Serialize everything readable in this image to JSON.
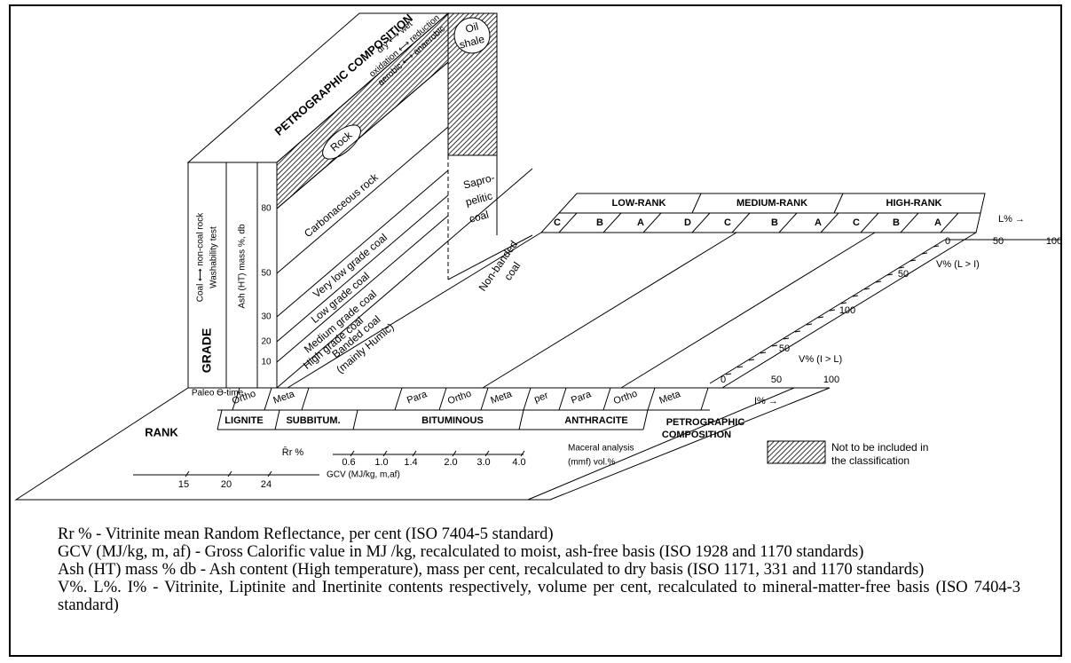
{
  "grade": {
    "title": "GRADE",
    "coal_label": "Coal ⟷ non-coal rock",
    "washability": "Washability test",
    "ash_label": "Ash (HT) mass %, db",
    "ticks": [
      "80",
      "50",
      "30",
      "20",
      "10"
    ]
  },
  "petrographic": {
    "title": "PETROGRAPHIC COMPOSITION",
    "conditions": [
      "dry ⟷ wet",
      "oxidation ⟷ reduction",
      "aerobic ⟷ anaerobic"
    ],
    "rock": "Rock",
    "oil_shale": [
      "Oil",
      "shale"
    ],
    "grades": [
      "Carbonaceous rock",
      "Very low grade coal",
      "Low grade coal",
      "Medium grade coal",
      "High grade coal"
    ],
    "banded": [
      "Banded coal",
      "(mainly Humic)"
    ],
    "sapropelitic": [
      "Sapro-",
      "pelitic",
      "coal"
    ],
    "non_banded": [
      "Non-banded",
      "coal"
    ]
  },
  "rank": {
    "title": "RANK",
    "paleo": "Paleo ϴ-time",
    "subranks": [
      "Ortho",
      "Meta",
      "Para",
      "Ortho",
      "Meta",
      "per",
      "Para",
      "Ortho",
      "Meta"
    ],
    "classes": [
      "LIGNITE",
      "SUBBITUM.",
      "BITUMINOUS",
      "ANTHRACITE"
    ],
    "petro": [
      "PETROGRAPHIC",
      "COMPOSITION"
    ]
  },
  "rr": {
    "label": "R̄r %",
    "ticks": [
      "0.6",
      "1.0",
      "1.4",
      "2.0",
      "3.0",
      "4.0"
    ]
  },
  "gcv": {
    "label": "GCV (MJ/kg, m,af)",
    "ticks": [
      "15",
      "20",
      "24"
    ]
  },
  "maceral": [
    "Maceral analysis",
    "(mmf) vol.%"
  ],
  "rank_table": {
    "groups": [
      "LOW-RANK",
      "MEDIUM-RANK",
      "HIGH-RANK"
    ],
    "letters": [
      "C",
      "B",
      "A",
      "D",
      "C",
      "B",
      "A",
      "C",
      "B",
      "A"
    ],
    "l_axis": "L% →",
    "l_ticks": [
      "0",
      "50",
      "100"
    ],
    "v_li": "V% (L > I)",
    "v_li_ticks": [
      "50",
      "100"
    ],
    "v_il": "V% (I > L)",
    "v_il_ticks": [
      "50"
    ],
    "i_axis": "I% →",
    "i_ticks": [
      "0",
      "50",
      "100"
    ]
  },
  "legend": [
    "Not to be included in",
    "the classification"
  ],
  "notes": [
    "Rr % - Vitrinite mean Random Reflectance, per cent (ISO 7404-5 standard)",
    "GCV (MJ/kg, m, af) - Gross Calorific value in MJ /kg, recalculated to moist, ash-free basis (ISO 1928 and 1170 standards)",
    "Ash (HT) mass % db - Ash content (High temperature), mass per cent, recalculated to dry basis (ISO 1171, 331 and 1170 standards)",
    "V%. L%. I% - Vitrinite, Liptinite and Inertinite contents respectively, volume per cent, recalculated to mineral-matter-free basis (ISO 7404-3 standard)"
  ]
}
